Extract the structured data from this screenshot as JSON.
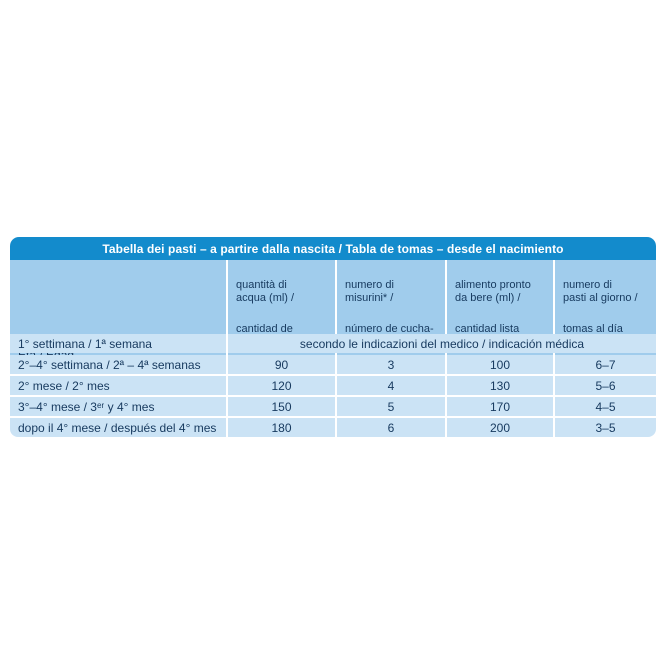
{
  "colors": {
    "title_bg": "#138BCC",
    "header_bg": "#A0CCEC",
    "row_bg": "#CBE3F5",
    "text_dark": "#16395E",
    "title_text": "#FFFFFF",
    "page_bg": "#FFFFFF"
  },
  "table": {
    "title": "Tabella dei pasti – a partire dalla nascita / Tabla de tomas – desde el nacimiento",
    "age_header": "Età / Edad",
    "columns": [
      {
        "it": "quantità di\nacqua (ml) /",
        "es": "cantidad de\nagua (ml)"
      },
      {
        "it": "numero di\nmisurini* /",
        "es": "número de cucha-\nradas medidoras*"
      },
      {
        "it": "alimento pronto\nda bere (ml) /",
        "es": "cantidad lista\npara tomar (ml)"
      },
      {
        "it": "numero di\npasti al giorno /",
        "es": "tomas al día"
      }
    ],
    "rows": [
      {
        "label": "1° settimana / 1ª semana",
        "merged": "secondo le indicazioni del medico / indicación médica"
      },
      {
        "label": "2°–4° settimana / 2ª – 4ª semanas",
        "values": [
          "90",
          "3",
          "100",
          "6–7"
        ]
      },
      {
        "label": "2° mese / 2° mes",
        "values": [
          "120",
          "4",
          "130",
          "5–6"
        ]
      },
      {
        "label": "3°–4° mese / 3ᵉʳ y 4° mes",
        "values": [
          "150",
          "5",
          "170",
          "4–5"
        ]
      },
      {
        "label": "dopo il 4° mese / después del 4° mes",
        "values": [
          "180",
          "6",
          "200",
          "3–5"
        ]
      }
    ]
  }
}
